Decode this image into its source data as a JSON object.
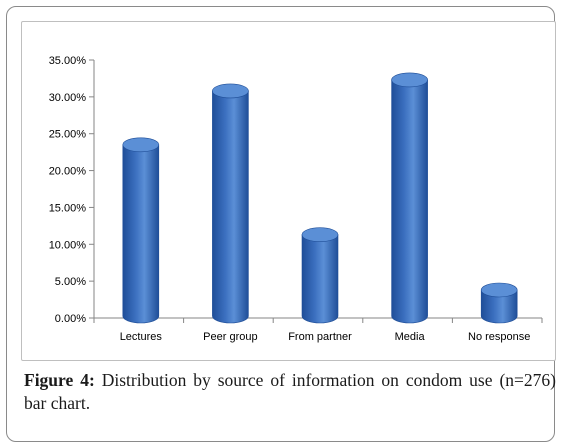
{
  "figure": {
    "caption_label": "Figure 4:",
    "caption_text": " Distribution by source of information on condom use (n=276) bar chart."
  },
  "colors": {
    "bar_body": "#3b6fbf",
    "bar_dark": "#1f4e98",
    "bar_top": "#5b8fd6",
    "axis": "#868686",
    "text": "#000000"
  },
  "chart_data": {
    "type": "bar",
    "style": "3d-cylinder",
    "categories": [
      "Lectures",
      "Peer group",
      "From partner",
      "Media",
      "No response"
    ],
    "values": [
      23.5,
      30.8,
      11.3,
      32.3,
      3.8
    ],
    "unit": "%",
    "ylim": [
      0,
      35
    ],
    "yticks": [
      "0.00%",
      "5.00%",
      "10.00%",
      "15.00%",
      "20.00%",
      "25.00%",
      "30.00%",
      "35.00%"
    ],
    "ytick_values": [
      0,
      5,
      10,
      15,
      20,
      25,
      30,
      35
    ],
    "grid": false,
    "legend": "none",
    "title": "",
    "xlabel": "",
    "ylabel": ""
  }
}
